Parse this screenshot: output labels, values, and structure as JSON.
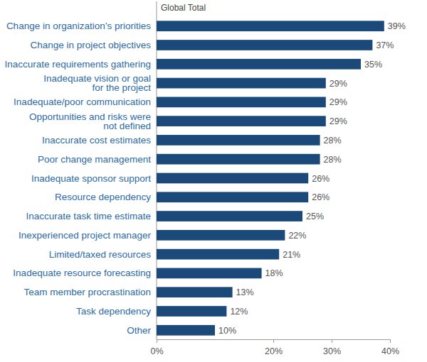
{
  "chart_data": {
    "type": "bar",
    "orientation": "horizontal",
    "title": "Global Total",
    "categories": [
      "Change in organization’s priorities",
      "Change in project objectives",
      "Inaccurate requirements gathering",
      "Inadequate vision or goal\nfor the project",
      "Inadequate/poor communication",
      "Opportunities and risks were\nnot defined",
      "Inaccurate cost estimates",
      "Poor change management",
      "Inadequate sponsor support",
      "Resource dependency",
      "Inaccurate task time estimate",
      "Inexperienced project manager",
      "Limited/taxed resources",
      "Inadequate resource forecasting",
      "Team member procrastination",
      "Task dependency",
      "Other"
    ],
    "values": [
      39,
      37,
      35,
      29,
      29,
      29,
      28,
      28,
      26,
      26,
      25,
      22,
      21,
      18,
      13,
      12,
      10
    ],
    "value_labels": [
      "39%",
      "37%",
      "35%",
      "29%",
      "29%",
      "29%",
      "28%",
      "28%",
      "26%",
      "26%",
      "25%",
      "22%",
      "21%",
      "18%",
      "13%",
      "12%",
      "10%"
    ],
    "color": "#1b4a7a",
    "data_labels": true,
    "grid": false,
    "xlim": [
      0,
      40
    ],
    "xticks": [
      {
        "value": 0,
        "label": "0%"
      },
      {
        "value": 20,
        "label": "20%"
      },
      {
        "value": 30,
        "label": "30%"
      },
      {
        "value": 40,
        "label": "40%"
      }
    ]
  }
}
